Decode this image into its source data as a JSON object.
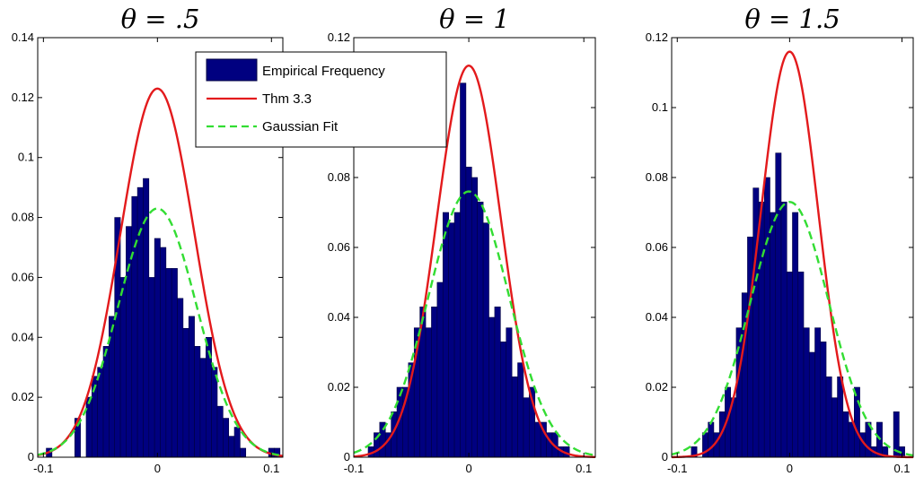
{
  "figure": {
    "legend": {
      "placement": "top-right of first panel",
      "items": [
        {
          "label": "Empirical Frequency",
          "kind": "bar",
          "color": "#000080"
        },
        {
          "label": "Thm 3.3",
          "kind": "line",
          "color": "#e31a1c"
        },
        {
          "label": "Gaussian Fit",
          "kind": "dashed-line",
          "color": "#33dd33"
        }
      ]
    },
    "colors": {
      "bar": "#000080",
      "bar_edge": "#000040",
      "thm": "#e31a1c",
      "gaussian": "#33dd33"
    }
  },
  "chart_data": [
    {
      "type": "bar",
      "title": "θ = .5",
      "xlim": [
        -0.105,
        0.11
      ],
      "ylim": [
        0,
        0.14
      ],
      "xticks": [
        -0.1,
        0,
        0.1
      ],
      "xtick_labels": [
        "-0.1",
        "0",
        "0.1"
      ],
      "yticks": [
        0,
        0.02,
        0.04,
        0.06,
        0.08,
        0.1,
        0.12,
        0.14
      ],
      "ytick_labels": [
        "0",
        "0.02",
        "0.04",
        "0.06",
        "0.08",
        "0.1",
        "0.12",
        "0.14"
      ],
      "bin_start": -0.0975,
      "bin_width": 0.005,
      "values": [
        0.003,
        0.0,
        0.0,
        0.0,
        0.0,
        0.013,
        0.0,
        0.02,
        0.027,
        0.03,
        0.037,
        0.047,
        0.08,
        0.06,
        0.077,
        0.087,
        0.09,
        0.093,
        0.06,
        0.073,
        0.07,
        0.063,
        0.063,
        0.053,
        0.043,
        0.047,
        0.037,
        0.033,
        0.04,
        0.03,
        0.017,
        0.013,
        0.007,
        0.01,
        0.003,
        0.0,
        0.0,
        0.0,
        0.0,
        0.003,
        0.003
      ],
      "series": [
        {
          "name": "Thm 3.3",
          "kind": "gaussian",
          "mu": 0.0,
          "sigma": 0.0325,
          "peak": 0.123
        },
        {
          "name": "Gaussian Fit",
          "kind": "gaussian",
          "mu": 0.0,
          "sigma": 0.0345,
          "peak": 0.083
        }
      ]
    },
    {
      "type": "bar",
      "title": "θ = 1",
      "xlim": [
        -0.1,
        0.11
      ],
      "ylim": [
        0,
        0.12
      ],
      "xticks": [
        -0.1,
        0,
        0.1
      ],
      "xtick_labels": [
        "-0.1",
        "0",
        "0.1"
      ],
      "yticks": [
        0,
        0.02,
        0.04,
        0.06,
        0.08,
        0.1,
        0.12
      ],
      "ytick_labels": [
        "0",
        "0.02",
        "0.04",
        "0.06",
        "0.08",
        "0.1",
        "0.12"
      ],
      "bin_start": -0.0875,
      "bin_width": 0.005,
      "values": [
        0.003,
        0.007,
        0.01,
        0.007,
        0.013,
        0.02,
        0.02,
        0.027,
        0.037,
        0.043,
        0.037,
        0.043,
        0.05,
        0.07,
        0.067,
        0.07,
        0.107,
        0.083,
        0.08,
        0.073,
        0.067,
        0.04,
        0.043,
        0.033,
        0.037,
        0.023,
        0.027,
        0.017,
        0.02,
        0.01,
        0.01,
        0.007,
        0.007,
        0.003,
        0.003,
        0.0
      ],
      "series": [
        {
          "name": "Thm 3.3",
          "kind": "gaussian",
          "mu": 0.0,
          "sigma": 0.028,
          "peak": 0.112
        },
        {
          "name": "Gaussian Fit",
          "kind": "gaussian",
          "mu": 0.0,
          "sigma": 0.035,
          "peak": 0.076
        }
      ]
    },
    {
      "type": "bar",
      "title": "θ = 1.5",
      "xlim": [
        -0.105,
        0.11
      ],
      "ylim": [
        0,
        0.12
      ],
      "xticks": [
        -0.1,
        0,
        0.1
      ],
      "xtick_labels": [
        "-0.1",
        "0",
        "0.1"
      ],
      "yticks": [
        0,
        0.02,
        0.04,
        0.06,
        0.08,
        0.1,
        0.12
      ],
      "ytick_labels": [
        "0",
        "0.02",
        "0.04",
        "0.06",
        "0.08",
        "0.1",
        "0.12"
      ],
      "bin_start": -0.0875,
      "bin_width": 0.005,
      "values": [
        0.003,
        0.0,
        0.007,
        0.01,
        0.007,
        0.013,
        0.02,
        0.017,
        0.037,
        0.047,
        0.063,
        0.077,
        0.073,
        0.08,
        0.07,
        0.087,
        0.073,
        0.053,
        0.07,
        0.053,
        0.037,
        0.03,
        0.037,
        0.033,
        0.023,
        0.017,
        0.023,
        0.013,
        0.01,
        0.02,
        0.007,
        0.01,
        0.003,
        0.01,
        0.003,
        0.0,
        0.013,
        0.003
      ],
      "series": [
        {
          "name": "Thm 3.3",
          "kind": "gaussian",
          "mu": 0.0,
          "sigma": 0.0255,
          "peak": 0.116
        },
        {
          "name": "Gaussian Fit",
          "kind": "gaussian",
          "mu": 0.0,
          "sigma": 0.035,
          "peak": 0.073
        }
      ]
    }
  ]
}
